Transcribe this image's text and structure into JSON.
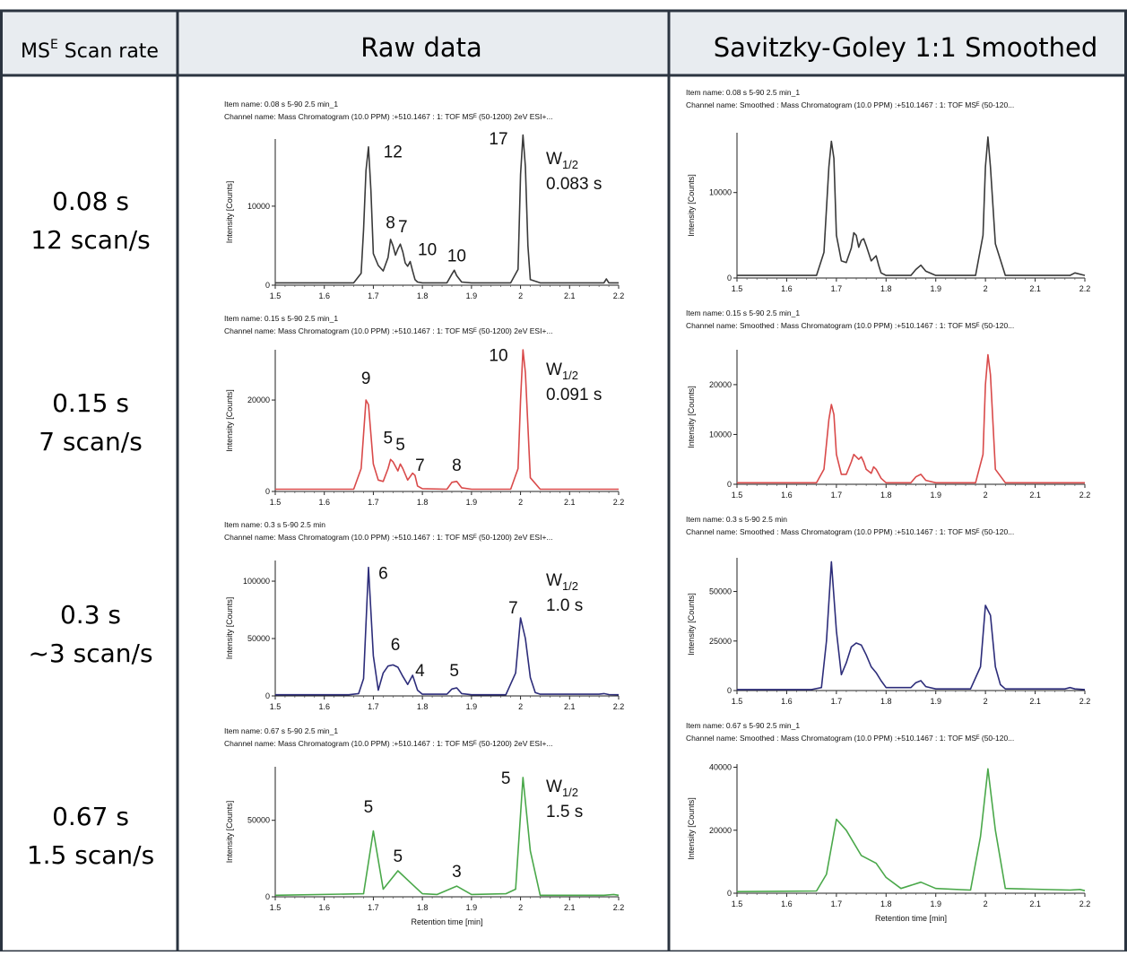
{
  "header": {
    "col0_prefix": "MS",
    "col0_sup": "E",
    "col0_suffix": " Scan rate",
    "col1": "Raw data",
    "col2": "Savitzky-Goley 1:1 Smoothed"
  },
  "colors": {
    "header_bg": "#e8ecf0",
    "border": "#2b3440",
    "row0": "#3a3a3a",
    "row1": "#d94a4a",
    "row2": "#2d2d7a",
    "row3": "#4aa84a"
  },
  "rows": [
    {
      "line1": "0.08 s",
      "line2": "12 scan/s",
      "raw_item": "Item name: 0.08 s 5-90 2.5 min_1",
      "raw_channel": "Channel name: Mass Chromatogram (10.0 PPM) :+510.1467 : 1: TOF MSᴱ (50-1200) 2eV ESI+...",
      "sm_item": "Item name: 0.08 s 5-90 2.5 min_1",
      "sm_channel": "Channel name: Smoothed : Mass Chromatogram (10.0 PPM) :+510.1467 : 1: TOF MSᴱ (50-120...",
      "w_label": "W",
      "w_sub": "1/2",
      "w_value": "0.083 s"
    },
    {
      "line1": "0.15 s",
      "line2": "7 scan/s",
      "raw_item": "Item name: 0.15 s 5-90 2.5 min_1",
      "raw_channel": "Channel name: Mass Chromatogram (10.0 PPM) :+510.1467 : 1: TOF MSᴱ (50-1200) 2eV ESI+...",
      "sm_item": "Item name: 0.15 s 5-90 2.5 min_1",
      "sm_channel": "Channel name: Smoothed : Mass Chromatogram (10.0 PPM) :+510.1467 : 1: TOF MSᴱ (50-120...",
      "w_label": "W",
      "w_sub": "1/2",
      "w_value": "0.091 s"
    },
    {
      "line1": "0.3 s",
      "line2": "~3 scan/s",
      "raw_item": "Item name: 0.3 s 5-90 2.5 min",
      "raw_channel": "Channel name: Mass Chromatogram (10.0 PPM) :+510.1467 : 1: TOF MSᴱ (50-1200) 2eV ESI+...",
      "sm_item": "Item name: 0.3 s 5-90 2.5 min",
      "sm_channel": "Channel name: Smoothed : Mass Chromatogram (10.0 PPM) :+510.1467 : 1: TOF MSᴱ (50-120...",
      "w_label": "W",
      "w_sub": "1/2",
      "w_value": "1.0 s"
    },
    {
      "line1": "0.67 s",
      "line2": "1.5 scan/s",
      "raw_item": "Item name: 0.67 s 5-90 2.5 min_1",
      "raw_channel": "Channel name: Mass Chromatogram (10.0 PPM) :+510.1467 : 1: TOF MSᴱ (50-1200) 2eV ESI+...",
      "sm_item": "Item name: 0.67 s 5-90 2.5 min_1",
      "sm_channel": "Channel name: Smoothed : Mass Chromatogram (10.0 PPM) :+510.1467 : 1: TOF MSᴱ (50-120...",
      "w_label": "W",
      "w_sub": "1/2",
      "w_value": "1.5 s"
    }
  ],
  "chart_data": [
    {
      "type": "line",
      "id": "raw-0",
      "color": "#3a3a3a",
      "ylabel": "Intensity [Counts]",
      "xlabel": "",
      "xlim": [
        1.5,
        2.2
      ],
      "ylim": [
        0,
        18500
      ],
      "yticks": [
        0,
        10000
      ],
      "xticks": [
        "1.5",
        "1.6",
        "1.7",
        "1.8",
        "1.9",
        "2",
        "2.1",
        "2.2"
      ],
      "x": [
        1.5,
        1.66,
        1.675,
        1.68,
        1.685,
        1.69,
        1.695,
        1.7,
        1.71,
        1.72,
        1.73,
        1.735,
        1.74,
        1.745,
        1.75,
        1.755,
        1.76,
        1.765,
        1.77,
        1.775,
        1.78,
        1.785,
        1.79,
        1.8,
        1.85,
        1.86,
        1.865,
        1.87,
        1.88,
        1.9,
        1.98,
        1.995,
        2.0,
        2.005,
        2.01,
        2.015,
        2.02,
        2.04,
        2.17,
        2.175,
        2.18,
        2.2
      ],
      "y": [
        300,
        300,
        1500,
        7000,
        14500,
        17500,
        12000,
        4000,
        2500,
        1800,
        3500,
        5800,
        5000,
        3800,
        4600,
        5200,
        4200,
        2800,
        2400,
        3000,
        1800,
        700,
        400,
        300,
        300,
        1400,
        1900,
        1200,
        400,
        300,
        300,
        2000,
        14000,
        19000,
        15000,
        5000,
        700,
        300,
        300,
        800,
        300,
        300
      ],
      "annotations": [
        {
          "text": "12",
          "x": 1.74,
          "y": 16200
        },
        {
          "text": "8",
          "x": 1.735,
          "y": 7200
        },
        {
          "text": "7",
          "x": 1.76,
          "y": 6700
        },
        {
          "text": "10",
          "x": 1.81,
          "y": 3800
        },
        {
          "text": "10",
          "x": 1.87,
          "y": 3000
        },
        {
          "text": "17",
          "x": 1.955,
          "y": 17800
        }
      ]
    },
    {
      "type": "line",
      "id": "raw-1",
      "color": "#d94a4a",
      "ylabel": "Intensity [Counts]",
      "xlabel": "",
      "xlim": [
        1.5,
        2.2
      ],
      "ylim": [
        0,
        31000
      ],
      "yticks": [
        0,
        20000
      ],
      "xticks": [
        "1.5",
        "1.6",
        "1.7",
        "1.8",
        "1.9",
        "2",
        "2.1",
        "2.2"
      ],
      "x": [
        1.5,
        1.66,
        1.675,
        1.685,
        1.69,
        1.7,
        1.71,
        1.72,
        1.73,
        1.735,
        1.74,
        1.75,
        1.755,
        1.76,
        1.77,
        1.78,
        1.785,
        1.79,
        1.8,
        1.85,
        1.86,
        1.87,
        1.88,
        1.9,
        1.98,
        1.995,
        2.0,
        2.005,
        2.01,
        2.02,
        2.04,
        2.2
      ],
      "y": [
        500,
        500,
        5000,
        20000,
        19000,
        6000,
        2500,
        2200,
        5000,
        7000,
        6500,
        4500,
        6000,
        5000,
        2500,
        4000,
        3500,
        1200,
        600,
        500,
        2000,
        2200,
        800,
        500,
        500,
        5000,
        20000,
        31000,
        26000,
        3000,
        500,
        500
      ],
      "annotations": [
        {
          "text": "9",
          "x": 1.685,
          "y": 23500
        },
        {
          "text": "5",
          "x": 1.73,
          "y": 10500
        },
        {
          "text": "5",
          "x": 1.755,
          "y": 9000
        },
        {
          "text": "7",
          "x": 1.795,
          "y": 4500
        },
        {
          "text": "8",
          "x": 1.87,
          "y": 4500
        },
        {
          "text": "10",
          "x": 1.955,
          "y": 28500
        }
      ]
    },
    {
      "type": "line",
      "id": "raw-2",
      "color": "#2d2d7a",
      "ylabel": "Intensity [Counts]",
      "xlabel": "",
      "xlim": [
        1.5,
        2.2
      ],
      "ylim": [
        0,
        118000
      ],
      "yticks": [
        0,
        50000,
        100000
      ],
      "xticks": [
        "1.5",
        "1.6",
        "1.7",
        "1.8",
        "1.9",
        "2",
        "2.1",
        "2.2"
      ],
      "x": [
        1.5,
        1.65,
        1.67,
        1.68,
        1.69,
        1.7,
        1.71,
        1.72,
        1.73,
        1.74,
        1.75,
        1.76,
        1.77,
        1.78,
        1.79,
        1.8,
        1.85,
        1.86,
        1.87,
        1.88,
        1.9,
        1.97,
        1.99,
        2.0,
        2.01,
        2.02,
        2.03,
        2.04,
        2.16,
        2.17,
        2.18,
        2.2
      ],
      "y": [
        1000,
        1000,
        2000,
        15000,
        112000,
        35000,
        5000,
        20000,
        26000,
        27000,
        25000,
        17000,
        10000,
        18000,
        5000,
        1500,
        1500,
        6000,
        7000,
        2000,
        1000,
        1000,
        20000,
        68000,
        50000,
        16000,
        3000,
        1500,
        1500,
        2000,
        1200,
        1000
      ],
      "annotations": [
        {
          "text": "6",
          "x": 1.72,
          "y": 102000
        },
        {
          "text": "6",
          "x": 1.745,
          "y": 40000
        },
        {
          "text": "4",
          "x": 1.795,
          "y": 17000
        },
        {
          "text": "5",
          "x": 1.865,
          "y": 17000
        },
        {
          "text": "7",
          "x": 1.985,
          "y": 72000
        }
      ]
    },
    {
      "type": "line",
      "id": "raw-3",
      "color": "#4aa84a",
      "ylabel": "Intensity [Counts]",
      "xlabel": "Retention time [min]",
      "xlim": [
        1.5,
        2.2
      ],
      "ylim": [
        0,
        85000
      ],
      "yticks": [
        0,
        50000
      ],
      "xticks": [
        "1.5",
        "1.6",
        "1.7",
        "1.8",
        "1.9",
        "2",
        "2.1",
        "2.2"
      ],
      "x": [
        1.5,
        1.68,
        1.7,
        1.72,
        1.75,
        1.78,
        1.8,
        1.83,
        1.87,
        1.9,
        1.97,
        1.99,
        2.005,
        2.02,
        2.04,
        2.17,
        2.19,
        2.2
      ],
      "y": [
        1000,
        2000,
        43000,
        5000,
        17000,
        8000,
        2000,
        1500,
        7000,
        1500,
        2000,
        5000,
        78000,
        30000,
        1000,
        1000,
        1500,
        1000
      ],
      "annotations": [
        {
          "text": "5",
          "x": 1.69,
          "y": 55000
        },
        {
          "text": "5",
          "x": 1.75,
          "y": 23000
        },
        {
          "text": "3",
          "x": 1.87,
          "y": 13000
        },
        {
          "text": "5",
          "x": 1.97,
          "y": 74000
        }
      ]
    },
    {
      "type": "line",
      "id": "sm-0",
      "color": "#3a3a3a",
      "ylabel": "Intensity [Counts]",
      "xlabel": "",
      "xlim": [
        1.5,
        2.2
      ],
      "ylim": [
        0,
        17000
      ],
      "yticks": [
        0,
        10000
      ],
      "xticks": [
        "1.5",
        "1.6",
        "1.7",
        "1.8",
        "1.9",
        "2",
        "2.1",
        "2.2"
      ],
      "x": [
        1.5,
        1.66,
        1.675,
        1.685,
        1.69,
        1.695,
        1.7,
        1.71,
        1.72,
        1.73,
        1.735,
        1.74,
        1.745,
        1.75,
        1.755,
        1.76,
        1.77,
        1.775,
        1.78,
        1.785,
        1.79,
        1.8,
        1.85,
        1.86,
        1.87,
        1.88,
        1.9,
        1.98,
        1.995,
        2.0,
        2.005,
        2.01,
        2.02,
        2.04,
        2.17,
        2.18,
        2.2
      ],
      "y": [
        300,
        300,
        3000,
        13000,
        16000,
        14000,
        5000,
        2000,
        1800,
        3500,
        5300,
        5000,
        3600,
        4400,
        4600,
        3800,
        2000,
        2300,
        2600,
        1500,
        600,
        300,
        300,
        1000,
        1500,
        800,
        300,
        300,
        5000,
        13000,
        16500,
        13000,
        4000,
        300,
        300,
        600,
        300
      ]
    },
    {
      "type": "line",
      "id": "sm-1",
      "color": "#d94a4a",
      "ylabel": "Intensity [Counts]",
      "xlabel": "",
      "xlim": [
        1.5,
        2.2
      ],
      "ylim": [
        0,
        27000
      ],
      "yticks": [
        0,
        10000,
        20000
      ],
      "xticks": [
        "1.5",
        "1.6",
        "1.7",
        "1.8",
        "1.9",
        "2",
        "2.1",
        "2.2"
      ],
      "x": [
        1.5,
        1.66,
        1.675,
        1.685,
        1.69,
        1.695,
        1.7,
        1.71,
        1.72,
        1.73,
        1.735,
        1.745,
        1.75,
        1.755,
        1.76,
        1.77,
        1.775,
        1.78,
        1.79,
        1.8,
        1.85,
        1.86,
        1.87,
        1.88,
        1.9,
        1.98,
        1.995,
        2.0,
        2.005,
        2.01,
        2.02,
        2.04,
        2.2
      ],
      "y": [
        300,
        300,
        3000,
        13000,
        16000,
        14000,
        6000,
        2000,
        2000,
        4500,
        6000,
        5000,
        5500,
        4500,
        3000,
        2200,
        3500,
        3000,
        1200,
        300,
        300,
        1500,
        2000,
        800,
        300,
        300,
        6000,
        20000,
        26000,
        22000,
        3000,
        300,
        300
      ]
    },
    {
      "type": "line",
      "id": "sm-2",
      "color": "#2d2d7a",
      "ylabel": "Intensity [Counts]",
      "xlabel": "",
      "xlim": [
        1.5,
        2.2
      ],
      "ylim": [
        0,
        67000
      ],
      "yticks": [
        0,
        25000,
        50000
      ],
      "xticks": [
        "1.5",
        "1.6",
        "1.7",
        "1.8",
        "1.9",
        "2",
        "2.1",
        "2.2"
      ],
      "x": [
        1.5,
        1.65,
        1.67,
        1.68,
        1.69,
        1.7,
        1.71,
        1.72,
        1.73,
        1.74,
        1.75,
        1.76,
        1.77,
        1.78,
        1.79,
        1.8,
        1.85,
        1.86,
        1.87,
        1.88,
        1.9,
        1.97,
        1.99,
        2.0,
        2.01,
        2.02,
        2.03,
        2.04,
        2.16,
        2.17,
        2.18,
        2.2
      ],
      "y": [
        500,
        500,
        1500,
        25000,
        65000,
        30000,
        8000,
        14000,
        22000,
        24000,
        23000,
        18000,
        12000,
        9000,
        5000,
        1500,
        1500,
        4000,
        5000,
        2000,
        800,
        800,
        12000,
        43000,
        38000,
        12000,
        3000,
        800,
        800,
        1500,
        800,
        500
      ]
    },
    {
      "type": "line",
      "id": "sm-3",
      "color": "#4aa84a",
      "ylabel": "Intensity [Counts]",
      "xlabel": "Retention time [min]",
      "xlim": [
        1.5,
        2.2
      ],
      "ylim": [
        0,
        41000
      ],
      "yticks": [
        0,
        20000,
        40000
      ],
      "xticks": [
        "1.5",
        "1.6",
        "1.7",
        "1.8",
        "1.9",
        "2",
        "2.1",
        "2.2"
      ],
      "x": [
        1.5,
        1.66,
        1.68,
        1.7,
        1.72,
        1.75,
        1.78,
        1.8,
        1.83,
        1.87,
        1.9,
        1.97,
        1.99,
        2.005,
        2.02,
        2.04,
        2.17,
        2.19,
        2.2
      ],
      "y": [
        500,
        700,
        6000,
        23500,
        20000,
        12000,
        9500,
        5000,
        1500,
        3500,
        1500,
        1000,
        18000,
        39500,
        20000,
        1500,
        1000,
        1200,
        800
      ]
    }
  ]
}
